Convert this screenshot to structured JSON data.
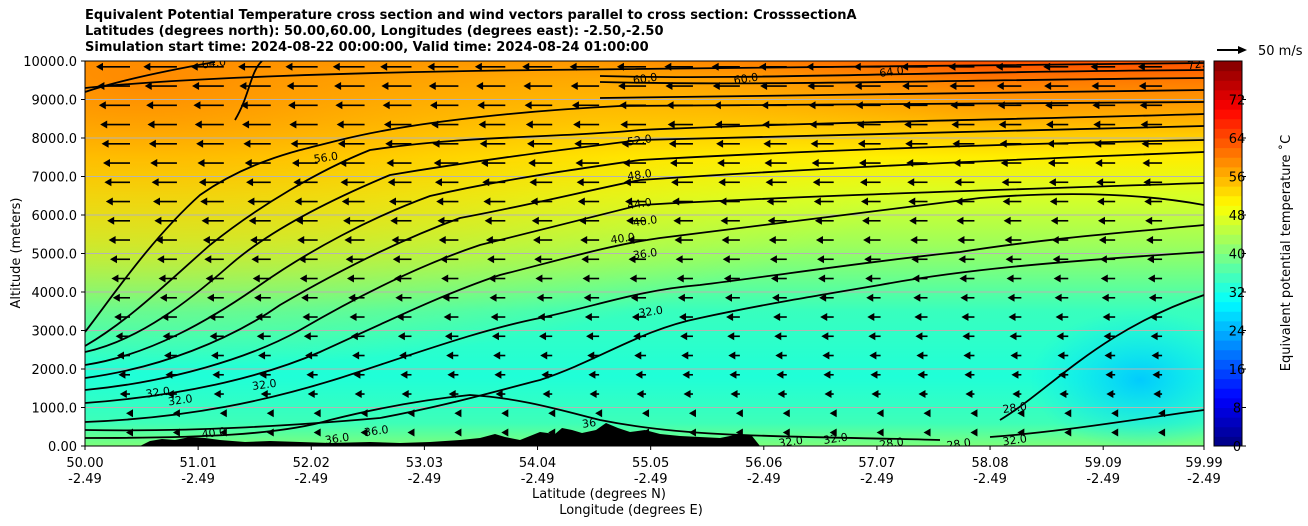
{
  "titles": {
    "line1": "Equivalent Potential Temperature cross section and wind vectors parallel to cross section: CrosssectionA",
    "line2": "Latitudes (degrees north): 50.00,60.00, Longitudes (degrees east): -2.50,-2.50",
    "line3": "Simulation start time: 2024-08-22 00:00:00, Valid time: 2024-08-24 01:00:00"
  },
  "chart_data": {
    "type": "heatmap",
    "title": "Equivalent Potential Temperature cross section and wind vectors parallel to cross section: CrosssectionA",
    "ylabel": "Altitude (meters)",
    "xlabel_lat": "Latitude (degrees N)",
    "xlabel_lon": "Longitude (degrees E)",
    "ylim": [
      0,
      10000
    ],
    "xlim": [
      50.0,
      59.99
    ],
    "y_ticks": [
      {
        "value": 0,
        "label": "0.00"
      },
      {
        "value": 1000,
        "label": "1000.0"
      },
      {
        "value": 2000,
        "label": "2000.0"
      },
      {
        "value": 3000,
        "label": "3000.0"
      },
      {
        "value": 4000,
        "label": "4000.0"
      },
      {
        "value": 5000,
        "label": "5000.0"
      },
      {
        "value": 6000,
        "label": "6000.0"
      },
      {
        "value": 7000,
        "label": "7000.0"
      },
      {
        "value": 8000,
        "label": "8000.0"
      },
      {
        "value": 9000,
        "label": "9000.0"
      },
      {
        "value": 10000,
        "label": "10000.0"
      }
    ],
    "x_ticks": [
      {
        "value": 50.0,
        "lat": "50.00",
        "lon": "-2.49"
      },
      {
        "value": 51.01,
        "lat": "51.01",
        "lon": "-2.49"
      },
      {
        "value": 52.02,
        "lat": "52.02",
        "lon": "-2.49"
      },
      {
        "value": 53.03,
        "lat": "53.03",
        "lon": "-2.49"
      },
      {
        "value": 54.04,
        "lat": "54.04",
        "lon": "-2.49"
      },
      {
        "value": 55.05,
        "lat": "55.05",
        "lon": "-2.49"
      },
      {
        "value": 56.06,
        "lat": "56.06",
        "lon": "-2.49"
      },
      {
        "value": 57.07,
        "lat": "57.07",
        "lon": "-2.49"
      },
      {
        "value": 58.08,
        "lat": "58.08",
        "lon": "-2.49"
      },
      {
        "value": 59.09,
        "lat": "59.09",
        "lon": "-2.49"
      },
      {
        "value": 59.99,
        "lat": "59.99",
        "lon": "-2.49"
      }
    ],
    "colorbar": {
      "label": "Equivalent potential temperature ˚C",
      "min": 0,
      "max": 80,
      "ticks": [
        0,
        8,
        16,
        24,
        32,
        40,
        48,
        56,
        64,
        72
      ]
    },
    "wind_key": {
      "label": "50 m/s"
    },
    "theta_e_profile_surface": [
      [
        50.0,
        40
      ],
      [
        50.5,
        39
      ],
      [
        51.0,
        38
      ],
      [
        51.5,
        37
      ],
      [
        52.0,
        35
      ],
      [
        52.5,
        34
      ],
      [
        53.0,
        34
      ],
      [
        53.5,
        33
      ],
      [
        54.0,
        33
      ],
      [
        54.5,
        34
      ],
      [
        55.0,
        33
      ],
      [
        55.5,
        33
      ],
      [
        56.0,
        33
      ],
      [
        56.5,
        32
      ],
      [
        57.0,
        32
      ],
      [
        57.5,
        31
      ],
      [
        58.0,
        31
      ],
      [
        58.5,
        30
      ],
      [
        59.0,
        30
      ],
      [
        59.5,
        31
      ],
      [
        59.99,
        31
      ]
    ],
    "contour_levels": [
      28,
      32,
      36,
      40,
      44,
      48,
      52,
      56,
      60,
      64
    ],
    "contour_labels": [
      {
        "text": "64.0",
        "x": 51.15,
        "y": 9950
      },
      {
        "text": "60.0",
        "x": 55.0,
        "y": 9550
      },
      {
        "text": "60.0",
        "x": 55.9,
        "y": 9550
      },
      {
        "text": "64.0",
        "x": 57.2,
        "y": 9730
      },
      {
        "text": "72.0",
        "x": 59.95,
        "y": 9930
      },
      {
        "text": "56.0",
        "x": 52.15,
        "y": 7500
      },
      {
        "text": "52.0",
        "x": 54.95,
        "y": 7950
      },
      {
        "text": "48.0",
        "x": 54.95,
        "y": 7050
      },
      {
        "text": "44.0",
        "x": 54.95,
        "y": 6300
      },
      {
        "text": "40.0",
        "x": 55.0,
        "y": 5850
      },
      {
        "text": "40.0",
        "x": 54.8,
        "y": 5400
      },
      {
        "text": "36.0",
        "x": 55.0,
        "y": 5000
      },
      {
        "text": "32.0",
        "x": 55.05,
        "y": 3500
      },
      {
        "text": "32.0",
        "x": 50.65,
        "y": 1400
      },
      {
        "text": "32.0",
        "x": 50.85,
        "y": 1200
      },
      {
        "text": "32.0",
        "x": 51.6,
        "y": 1600
      },
      {
        "text": "40.0",
        "x": 51.15,
        "y": 350
      },
      {
        "text": "36.0",
        "x": 52.25,
        "y": 200
      },
      {
        "text": "36.0",
        "x": 52.6,
        "y": 400
      },
      {
        "text": "36",
        "x": 54.5,
        "y": 600
      },
      {
        "text": "32.0",
        "x": 56.3,
        "y": 120
      },
      {
        "text": "32.0",
        "x": 56.7,
        "y": 200
      },
      {
        "text": "28.0",
        "x": 57.2,
        "y": 80
      },
      {
        "text": "28.0",
        "x": 57.8,
        "y": 60
      },
      {
        "text": "28.0",
        "x": 58.3,
        "y": 1000
      },
      {
        "text": "32.0",
        "x": 58.3,
        "y": 160
      }
    ]
  }
}
